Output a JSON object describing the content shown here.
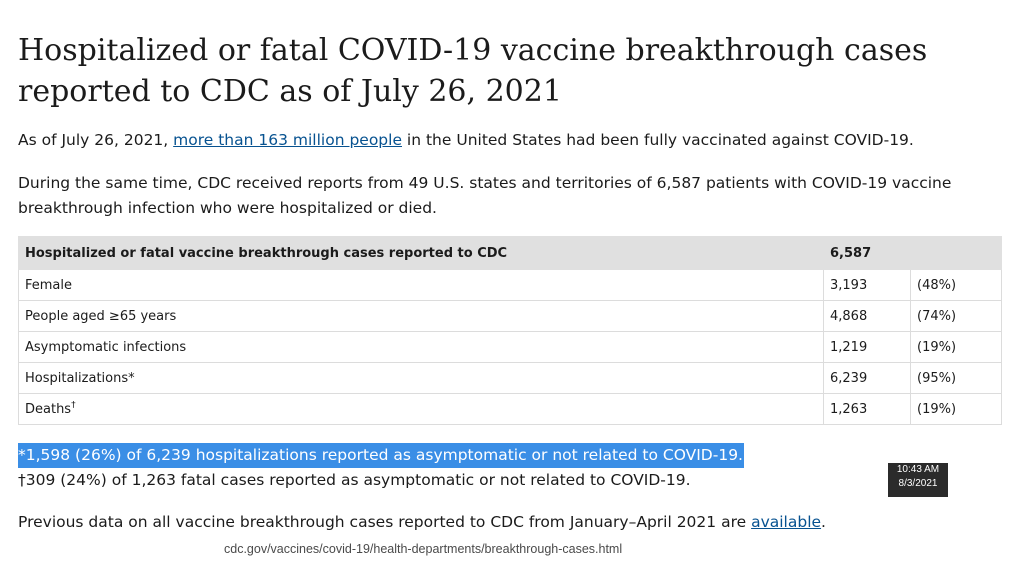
{
  "title": "Hospitalized or fatal COVID-19 vaccine breakthrough cases reported to CDC as of July 26, 2021",
  "intro": {
    "prefix": "As of July 26, 2021, ",
    "link_text": "more than 163 million people",
    "suffix": " in the United States had been fully vaccinated against COVID-19."
  },
  "summary": "During the same time, CDC received reports from 49 U.S. states and territories of 6,587 patients with COVID-19 vaccine breakthrough infection who were hospitalized or died.",
  "table": {
    "header_label": "Hospitalized or fatal vaccine breakthrough cases reported to CDC",
    "header_value": "6,587",
    "rows": [
      {
        "label": "Female",
        "mark": "",
        "value": "3,193",
        "pct": "(48%)"
      },
      {
        "label": "People aged ≥65 years",
        "mark": "",
        "value": "4,868",
        "pct": "(74%)"
      },
      {
        "label": "Asymptomatic infections",
        "mark": "",
        "value": "1,219",
        "pct": "(19%)"
      },
      {
        "label": "Hospitalizations*",
        "mark": "",
        "value": "6,239",
        "pct": "(95%)"
      },
      {
        "label": "Deaths",
        "mark": "†",
        "value": "1,263",
        "pct": "(19%)"
      }
    ]
  },
  "footnotes": {
    "hospitalizations": "*1,598 (26%) of 6,239 hospitalizations reported as asymptomatic or not related to COVID-19.",
    "deaths": "†309 (24%) of 1,263 fatal cases reported as asymptomatic or not related to COVID-19."
  },
  "timestamp": {
    "time": "10:43 AM",
    "date": "8/3/2021"
  },
  "previous": {
    "prefix": "Previous data on all vaccine breakthrough cases reported to CDC from January–April 2021 are ",
    "link_text": "available",
    "suffix": "."
  },
  "source_url": "cdc.gov/vaccines/covid-19/health-departments/breakthrough-cases.html",
  "colors": {
    "link": "#075290",
    "highlight": "#3a8ee6",
    "table_header": "#e0e0e0"
  }
}
